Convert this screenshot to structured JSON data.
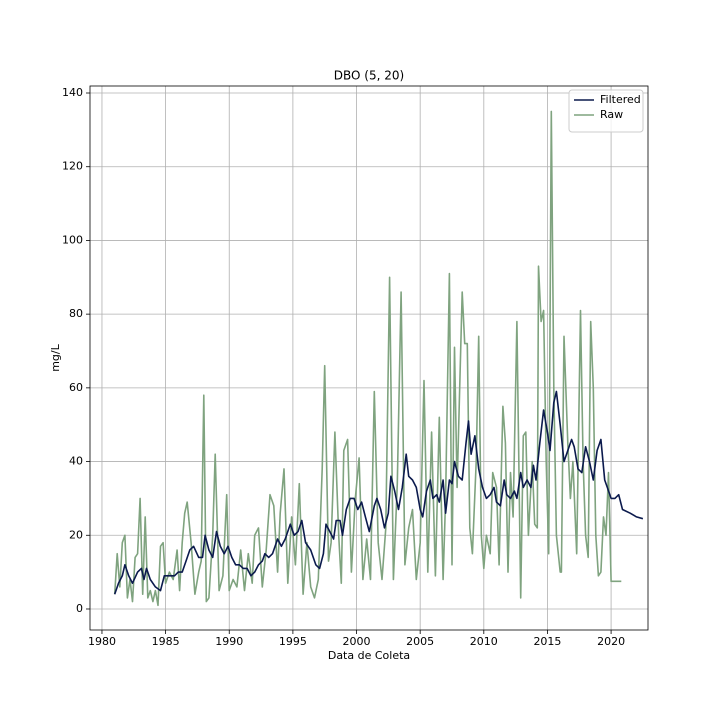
{
  "chart_data": {
    "type": "line",
    "title": "DBO (5, 20)",
    "x_label": "Data de Coleta",
    "y_label": "mg/L",
    "xlim": [
      1979.06,
      2022.9
    ],
    "ylim": [
      -5.7,
      141.9
    ],
    "xticks": [
      1980,
      1985,
      1990,
      1995,
      2000,
      2005,
      2010,
      2015,
      2020
    ],
    "yticks": [
      0,
      20,
      40,
      60,
      80,
      100,
      120,
      140
    ],
    "grid": true,
    "legend": "upper right",
    "series": [
      {
        "name": "Filtered",
        "color": "#0b1a4d",
        "x": [
          1981.0,
          1981.3,
          1981.6,
          1981.8,
          1982.1,
          1982.4,
          1982.8,
          1983.1,
          1983.3,
          1983.5,
          1983.8,
          1984.2,
          1984.6,
          1984.9,
          1985.3,
          1985.7,
          1986.0,
          1986.3,
          1986.6,
          1986.9,
          1987.2,
          1987.6,
          1987.9,
          1988.1,
          1988.4,
          1988.7,
          1989.0,
          1989.3,
          1989.6,
          1989.9,
          1990.2,
          1990.5,
          1990.8,
          1991.1,
          1991.4,
          1991.7,
          1992.0,
          1992.3,
          1992.6,
          1992.8,
          1993.1,
          1993.4,
          1993.8,
          1994.1,
          1994.4,
          1994.8,
          1995.1,
          1995.4,
          1995.7,
          1996.0,
          1996.4,
          1996.8,
          1997.1,
          1997.4,
          1997.6,
          1997.9,
          1998.2,
          1998.4,
          1998.7,
          1998.9,
          1999.2,
          1999.5,
          1999.8,
          2000.1,
          2000.4,
          2000.7,
          2001.0,
          2001.4,
          2001.6,
          2001.9,
          2002.2,
          2002.5,
          2002.7,
          2003.0,
          2003.3,
          2003.6,
          2003.9,
          2004.1,
          2004.4,
          2004.7,
          2005.0,
          2005.2,
          2005.5,
          2005.8,
          2006.0,
          2006.3,
          2006.5,
          2006.8,
          2007.0,
          2007.3,
          2007.5,
          2007.7,
          2008.0,
          2008.3,
          2008.6,
          2008.8,
          2009.0,
          2009.3,
          2009.6,
          2009.9,
          2010.2,
          2010.5,
          2010.8,
          2011.0,
          2011.3,
          2011.6,
          2011.8,
          2012.1,
          2012.4,
          2012.6,
          2012.9,
          2013.1,
          2013.4,
          2013.7,
          2013.9,
          2014.1,
          2014.4,
          2014.7,
          2015.0,
          2015.2,
          2015.5,
          2015.7,
          2016.0,
          2016.3,
          2016.6,
          2016.9,
          2017.1,
          2017.4,
          2017.7,
          2018.0,
          2018.3,
          2018.6,
          2018.9,
          2019.2,
          2019.5,
          2019.7,
          2020.0,
          2020.3,
          2020.6,
          2020.9,
          2021.5,
          2022.0,
          2022.5
        ],
        "values": [
          4,
          7,
          9,
          12,
          9,
          7,
          10,
          11,
          8,
          11,
          8,
          6,
          5,
          9,
          9,
          9,
          10,
          10,
          13,
          16,
          17,
          14,
          14,
          20,
          16,
          14,
          21,
          17,
          15,
          17,
          14,
          12,
          12,
          11,
          11,
          9,
          10,
          12,
          13,
          15,
          14,
          15,
          19,
          17,
          19,
          23,
          20,
          21,
          24,
          18,
          16,
          12,
          11,
          15,
          23,
          21,
          19,
          24,
          24,
          20,
          27,
          30,
          30,
          27,
          29,
          25,
          21,
          28,
          30,
          27,
          22,
          26,
          36,
          32,
          27,
          33,
          42,
          36,
          35,
          33,
          27,
          25,
          32,
          35,
          30,
          31,
          29,
          35,
          26,
          35,
          34,
          40,
          36,
          35,
          45,
          51,
          42,
          47,
          38,
          33,
          30,
          31,
          33,
          29,
          28,
          35,
          31,
          30,
          32,
          30,
          37,
          33,
          35,
          33,
          39,
          35,
          45,
          54,
          48,
          43,
          56,
          59,
          50,
          40,
          43,
          46,
          44,
          38,
          37,
          44,
          40,
          35,
          43,
          46,
          35,
          33,
          30,
          30,
          31,
          27,
          26,
          25,
          24.5
        ]
      },
      {
        "name": "Raw",
        "color": "#7fa37f",
        "x": [
          1981.0,
          1981.2,
          1981.4,
          1981.6,
          1981.8,
          1982.0,
          1982.2,
          1982.4,
          1982.6,
          1982.8,
          1983.0,
          1983.2,
          1983.4,
          1983.6,
          1983.8,
          1984.0,
          1984.2,
          1984.4,
          1984.6,
          1984.8,
          1985.0,
          1985.3,
          1985.6,
          1985.9,
          1986.1,
          1986.3,
          1986.5,
          1986.7,
          1987.0,
          1987.3,
          1987.6,
          1987.8,
          1988.0,
          1988.2,
          1988.4,
          1988.7,
          1988.9,
          1989.2,
          1989.5,
          1989.8,
          1990.0,
          1990.3,
          1990.6,
          1990.9,
          1991.2,
          1991.5,
          1991.8,
          1992.0,
          1992.3,
          1992.6,
          1992.9,
          1993.2,
          1993.5,
          1993.8,
          1994.0,
          1994.3,
          1994.6,
          1994.9,
          1995.2,
          1995.5,
          1995.8,
          1996.1,
          1996.4,
          1996.7,
          1997.0,
          1997.3,
          1997.5,
          1997.8,
          1998.0,
          1998.3,
          1998.6,
          1998.8,
          1999.0,
          1999.3,
          1999.6,
          1999.9,
          2000.2,
          2000.5,
          2000.8,
          2001.1,
          2001.4,
          2001.7,
          2002.0,
          2002.3,
          2002.6,
          2002.9,
          2003.2,
          2003.5,
          2003.8,
          2004.1,
          2004.4,
          2004.7,
          2005.0,
          2005.3,
          2005.6,
          2005.9,
          2006.2,
          2006.5,
          2006.8,
          2007.0,
          2007.3,
          2007.5,
          2007.7,
          2007.9,
          2008.3,
          2008.5,
          2008.7,
          2008.9,
          2009.1,
          2009.4,
          2009.6,
          2009.8,
          2010.0,
          2010.2,
          2010.5,
          2010.7,
          2011.0,
          2011.2,
          2011.5,
          2011.7,
          2011.9,
          2012.1,
          2012.3,
          2012.6,
          2012.9,
          2013.1,
          2013.3,
          2013.5,
          2013.8,
          2014.0,
          2014.2,
          2014.3,
          2014.5,
          2014.7,
          2014.9,
          2015.1,
          2015.3,
          2015.5,
          2015.7,
          2016.0,
          2016.1,
          2016.3,
          2016.6,
          2016.8,
          2017.0,
          2017.3,
          2017.6,
          2017.8,
          2018.0,
          2018.2,
          2018.4,
          2018.6,
          2018.8,
          2019.0,
          2019.2,
          2019.4,
          2019.6,
          2019.8,
          2020.0,
          2020.4,
          2020.8
        ],
        "values": [
          4,
          15,
          6,
          18,
          20,
          3,
          8,
          2,
          14,
          15,
          30,
          4,
          25,
          3,
          5,
          2,
          5,
          1,
          17,
          18,
          7,
          10,
          8,
          16,
          5,
          18,
          26,
          29,
          18,
          4,
          10,
          13,
          58,
          2,
          3,
          20,
          42,
          5,
          9,
          31,
          5,
          8,
          6,
          16,
          5,
          15,
          7,
          20,
          22,
          6,
          16,
          31,
          28,
          10,
          26,
          38,
          7,
          25,
          12,
          34,
          4,
          18,
          6,
          3,
          8,
          38,
          66,
          13,
          18,
          48,
          20,
          7,
          43,
          46,
          10,
          30,
          41,
          8,
          19,
          8,
          59,
          18,
          8,
          22,
          90,
          8,
          34,
          86,
          12,
          22,
          27,
          8,
          18,
          62,
          10,
          48,
          9,
          52,
          8,
          30,
          91,
          12,
          71,
          33,
          86,
          72,
          72,
          22,
          15,
          40,
          74,
          20,
          11,
          20,
          15,
          37,
          33,
          12,
          55,
          45,
          10,
          37,
          25,
          78,
          3,
          47,
          48,
          20,
          40,
          23,
          22,
          93,
          78,
          81,
          40,
          15,
          135,
          60,
          20,
          10,
          10,
          74,
          45,
          30,
          40,
          15,
          81,
          40,
          20,
          14,
          78,
          60,
          20,
          9,
          10,
          25,
          20,
          37,
          7.5,
          7.5,
          7.5
        ]
      }
    ]
  }
}
